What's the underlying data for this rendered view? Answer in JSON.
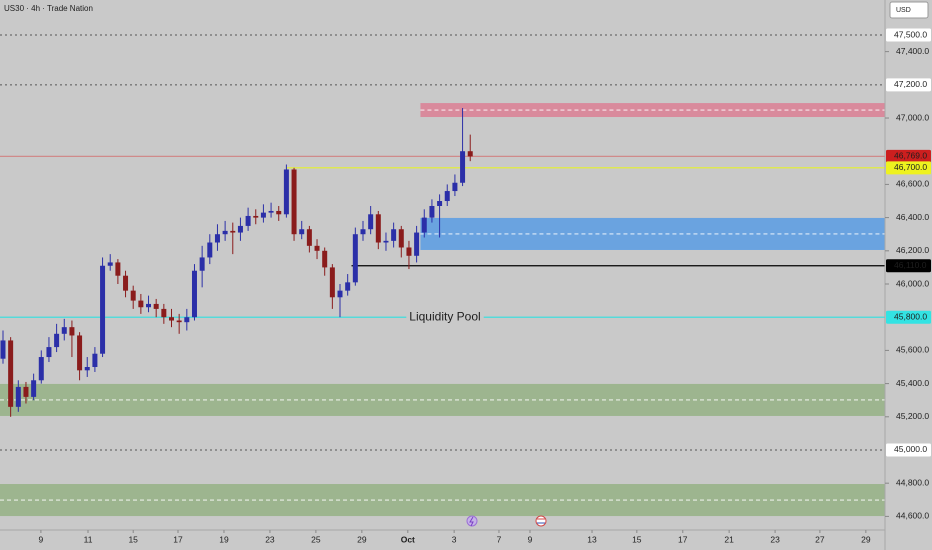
{
  "chart_data": {
    "type": "candlestick",
    "title": "US30 · 4h · Trade Nation",
    "currency": "USD",
    "colors": {
      "up": "#2b2fa8",
      "down": "#8a1c1c",
      "background": "#c9c9c9"
    },
    "xlim": [
      -0.78,
      230.3
    ],
    "ylim": [
      44518,
      47711
    ],
    "xticks": [
      {
        "value": 9.9,
        "label": "9"
      },
      {
        "value": 22.2,
        "label": "11"
      },
      {
        "value": 34,
        "label": "15"
      },
      {
        "value": 45.7,
        "label": "17"
      },
      {
        "value": 57.7,
        "label": "19"
      },
      {
        "value": 69.7,
        "label": "23"
      },
      {
        "value": 81.7,
        "label": "25"
      },
      {
        "value": 93.7,
        "label": "29"
      },
      {
        "value": 105.7,
        "label": "Oct"
      },
      {
        "value": 117.8,
        "label": "3"
      },
      {
        "value": 129.5,
        "label": "7"
      },
      {
        "value": 137.6,
        "label": "9"
      },
      {
        "value": 153.8,
        "label": "13"
      },
      {
        "value": 165.5,
        "label": "15"
      },
      {
        "value": 177.5,
        "label": "17"
      },
      {
        "value": 189.6,
        "label": "21"
      },
      {
        "value": 201.6,
        "label": "23"
      },
      {
        "value": 213.3,
        "label": "27"
      },
      {
        "value": 225.3,
        "label": "29"
      }
    ],
    "yticks": [
      {
        "value": 47400,
        "label": "47,400.0"
      },
      {
        "value": 47000,
        "label": "47,000.0"
      },
      {
        "value": 46600,
        "label": "46,600.0"
      },
      {
        "value": 46400,
        "label": "46,400.0"
      },
      {
        "value": 46200,
        "label": "46,200.0"
      },
      {
        "value": 46000,
        "label": "46,000.0"
      },
      {
        "value": 45600,
        "label": "45,600.0"
      },
      {
        "value": 45400,
        "label": "45,400.0"
      },
      {
        "value": 45200,
        "label": "45,200.0"
      },
      {
        "value": 44800,
        "label": "44,800.0"
      },
      {
        "value": 44600,
        "label": "44,600.0"
      }
    ],
    "zones": [
      {
        "low": 47006,
        "high": 47090,
        "color": "#d98a9c",
        "start": 109
      },
      {
        "low": 46205,
        "high": 46398,
        "color": "#6aa3e0",
        "start": 109
      },
      {
        "low": 45205,
        "high": 45398,
        "color": "#9db58f"
      },
      {
        "low": 44602,
        "high": 44795,
        "color": "#9db58f"
      }
    ],
    "levels": [
      {
        "value": 47500,
        "label": "47,500.0",
        "color": "#555555",
        "style": "dotted",
        "label_bg": "#ffffff",
        "label_fg": "#131722"
      },
      {
        "value": 47200,
        "label": "47,200.0",
        "color": "#555555",
        "style": "dotted",
        "label_bg": "#ffffff",
        "label_fg": "#131722"
      },
      {
        "value": 46769,
        "label": "46,769.0",
        "color": "#d08a8a",
        "style": "solid",
        "label_bg": "#cc1f1f",
        "label_fg": "#ffffff"
      },
      {
        "value": 46700,
        "label": "46,700.0",
        "color": "#e6f22a",
        "style": "solid",
        "label_bg": "#eef21f",
        "label_fg": "#131722",
        "start": 74
      },
      {
        "value": 46110,
        "label": "46,110.0",
        "color": "#000000",
        "style": "solid",
        "label_bg": "#000000",
        "label_fg": "#ffffff",
        "start": 91
      },
      {
        "value": 45800,
        "label": "45,800.0",
        "color": "#2fe0e0",
        "style": "solid",
        "label_bg": "#33e3e3",
        "label_fg": "#131722",
        "annotation": "Liquidity Pool"
      },
      {
        "value": 45000,
        "label": "45,000.0",
        "color": "#555555",
        "style": "dotted",
        "label_bg": "#ffffff",
        "label_fg": "#131722"
      }
    ],
    "x": [
      0,
      2,
      4,
      6,
      8,
      10,
      12,
      14,
      16,
      18,
      20,
      22,
      24,
      26,
      28,
      30,
      32,
      34,
      36,
      38,
      40,
      42,
      44,
      46,
      48,
      50,
      52,
      54,
      56,
      58,
      60,
      62,
      64,
      66,
      68,
      70,
      72,
      74,
      76,
      78,
      80,
      82,
      84,
      86,
      88,
      90,
      92,
      94,
      96,
      98,
      100,
      102,
      104,
      106,
      108,
      110,
      112,
      114,
      116,
      118,
      120,
      122
    ],
    "open": [
      45550,
      45660,
      45260,
      45380,
      45320,
      45420,
      45560,
      45620,
      45700,
      45740,
      45690,
      45480,
      45500,
      45580,
      46110,
      46130,
      46050,
      45960,
      45900,
      45860,
      45880,
      45850,
      45800,
      45780,
      45770,
      45800,
      46080,
      46160,
      46250,
      46300,
      46320,
      46310,
      46350,
      46410,
      46400,
      46430,
      46440,
      46420,
      46690,
      46300,
      46330,
      46230,
      46200,
      46100,
      45920,
      45960,
      46010,
      46300,
      46330,
      46420,
      46250,
      46260,
      46330,
      46220,
      46170,
      46310,
      46400,
      46470,
      46500,
      46560,
      46610,
      46800
    ],
    "high": [
      45720,
      45680,
      45420,
      45410,
      45460,
      45600,
      45680,
      45760,
      45790,
      45780,
      45710,
      45560,
      45620,
      46160,
      46180,
      46150,
      46080,
      45990,
      45940,
      45930,
      45910,
      45880,
      45850,
      45820,
      45850,
      46120,
      46230,
      46300,
      46360,
      46380,
      46370,
      46400,
      46460,
      46450,
      46480,
      46490,
      46470,
      46720,
      46700,
      46380,
      46350,
      46270,
      46220,
      46120,
      46000,
      46060,
      46340,
      46380,
      46470,
      46440,
      46310,
      46370,
      46350,
      46260,
      46350,
      46450,
      46510,
      46540,
      46600,
      46660,
      47060,
      46900
    ],
    "low": [
      45520,
      45200,
      45230,
      45280,
      45300,
      45400,
      45530,
      45590,
      45660,
      45560,
      45420,
      45440,
      45470,
      45560,
      46080,
      46000,
      45920,
      45850,
      45820,
      45830,
      45800,
      45760,
      45740,
      45700,
      45720,
      45780,
      45980,
      46120,
      46200,
      46260,
      46180,
      46260,
      46320,
      46360,
      46370,
      46400,
      46380,
      46400,
      46260,
      46270,
      46190,
      46150,
      46050,
      45850,
      45800,
      45930,
      45990,
      46260,
      46300,
      46210,
      46200,
      46220,
      46160,
      46090,
      46130,
      46280,
      46370,
      46280,
      46470,
      46530,
      46590,
      46740
    ],
    "close": [
      45660,
      45260,
      45380,
      45320,
      45420,
      45560,
      45620,
      45700,
      45740,
      45690,
      45480,
      45500,
      45580,
      46110,
      46130,
      46050,
      45960,
      45900,
      45860,
      45880,
      45850,
      45800,
      45780,
      45770,
      45800,
      46080,
      46160,
      46250,
      46300,
      46320,
      46310,
      46350,
      46410,
      46400,
      46430,
      46440,
      46420,
      46690,
      46300,
      46330,
      46230,
      46200,
      46100,
      45920,
      45960,
      46010,
      46300,
      46330,
      46420,
      46250,
      46260,
      46330,
      46220,
      46170,
      46310,
      46400,
      46470,
      46500,
      46560,
      46610,
      46800,
      46769
    ]
  }
}
